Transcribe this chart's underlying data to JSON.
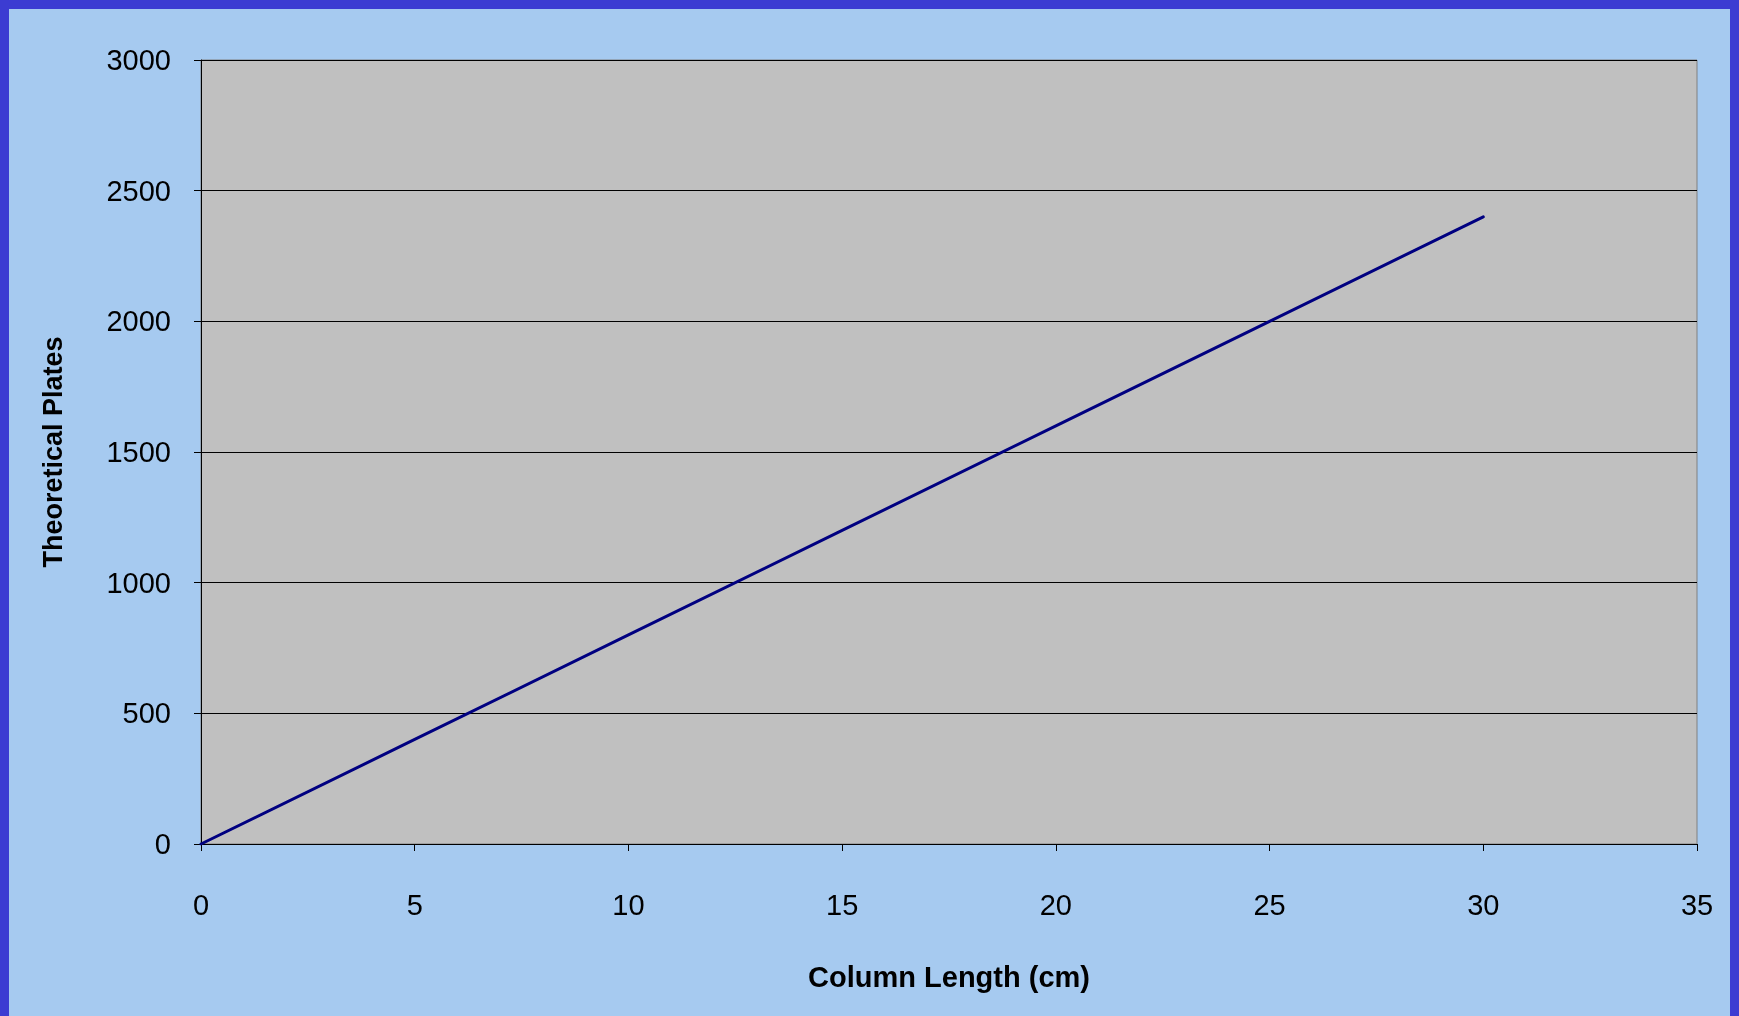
{
  "chart_data": {
    "type": "line",
    "xlabel": "Column Length (cm)",
    "ylabel": "Theoretical Plates",
    "x": [
      0,
      5,
      10,
      15,
      20,
      25,
      30
    ],
    "series": [
      {
        "color": "#000080",
        "values": [
          0,
          400,
          800,
          1200,
          1600,
          2000,
          2400
        ]
      }
    ],
    "xlim": [
      0,
      35
    ],
    "xticks": [
      0,
      5,
      10,
      15,
      20,
      25,
      30,
      35
    ],
    "ylim": [
      0,
      3000
    ],
    "yticks": [
      0,
      500,
      1000,
      1500,
      2000,
      2500,
      3000
    ],
    "grid": "y",
    "marker": "none",
    "line_style": "solid"
  }
}
